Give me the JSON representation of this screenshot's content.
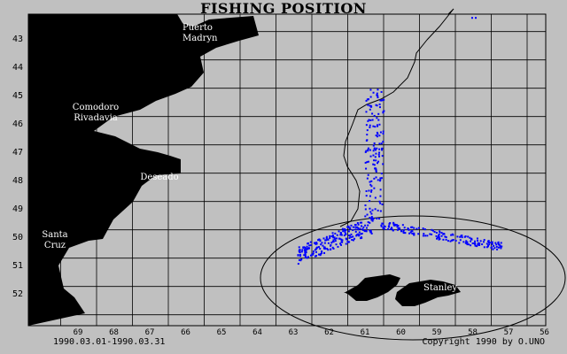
{
  "title": "FISHING POSITION",
  "date_range": "1990.03.01-1990.03.31",
  "copyright": "Copyright 1990 by O.UNO",
  "colors": {
    "background": "#c0c0c0",
    "land": "#000000",
    "grid": "#000000",
    "points": "#0000ff",
    "land_label_light": "#ffffff"
  },
  "chart_data": {
    "type": "scatter",
    "xlabel": "",
    "ylabel": "",
    "x_axis_reversed": true,
    "xlim": [
      70,
      55.8
    ],
    "ylim": [
      42.4,
      53.1
    ],
    "x_ticks": [
      "69",
      "68",
      "67",
      "66",
      "65",
      "64",
      "63",
      "62",
      "61",
      "60",
      "59",
      "58",
      "57",
      "56"
    ],
    "y_ticks": [
      "43",
      "44",
      "45",
      "46",
      "47",
      "48",
      "49",
      "50",
      "51",
      "52"
    ],
    "grid": true,
    "land_labels": [
      {
        "text": "Puerto Madryn",
        "lines": [
          "Puerto",
          "Madryn"
        ]
      },
      {
        "text": "Comodoro Rivadavia",
        "lines": [
          "Comodoro",
          "Rivadavia"
        ]
      },
      {
        "text": "Deseado",
        "lines": [
          "Deseado"
        ]
      },
      {
        "text": "Santa Cruz",
        "lines": [
          "Santa",
          "Cruz"
        ]
      },
      {
        "text": "Stanley",
        "lines": [
          "Stanley"
        ]
      }
    ],
    "fishing_clusters": [
      {
        "lon": [
          61.3,
          60.1
        ],
        "lat": [
          45.0,
          49.8
        ],
        "density": "north-south band"
      },
      {
        "lon": [
          63.0,
          61.0
        ],
        "lat": [
          49.5,
          50.8
        ],
        "density": "dense western arc"
      },
      {
        "lon": [
          61.0,
          57.0
        ],
        "lat": [
          49.8,
          50.9
        ],
        "density": "eastern arc north of Falklands"
      }
    ]
  }
}
